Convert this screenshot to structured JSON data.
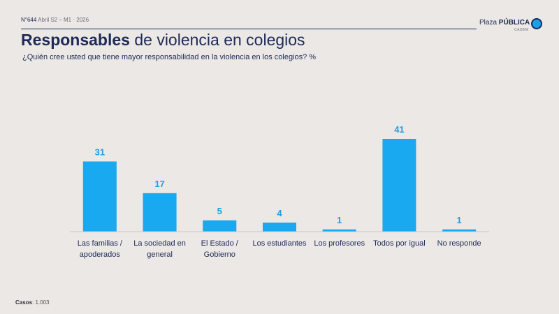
{
  "header": {
    "issue": "N°644",
    "issue_meta": "Abril S2 – M1 · 2026",
    "logo_text_regular": "Plaza",
    "logo_text_bold": "PÚBLICA",
    "logo_sub": "CADEM"
  },
  "title": {
    "bold": "Responsables",
    "regular": " de violencia en colegios"
  },
  "subtitle": "¿Quién cree usted que tiene mayor responsabilidad en la violencia en los colegios? %",
  "footer": {
    "label": "Casos",
    "value": ": 1.003"
  },
  "chart_data": {
    "type": "bar",
    "categories": [
      [
        "Las familias /",
        "apoderados"
      ],
      [
        "La sociedad en",
        "general"
      ],
      [
        "El Estado /",
        "Gobierno"
      ],
      [
        "Los estudiantes"
      ],
      [
        "Los profesores"
      ],
      [
        "Todos por igual"
      ],
      [
        "No responde"
      ]
    ],
    "values": [
      31,
      17,
      5,
      4,
      1,
      41,
      1
    ],
    "ylim": [
      0,
      41
    ],
    "grid": false,
    "bar_color": "#18a9f0",
    "label_color": "#1aa0e6"
  }
}
